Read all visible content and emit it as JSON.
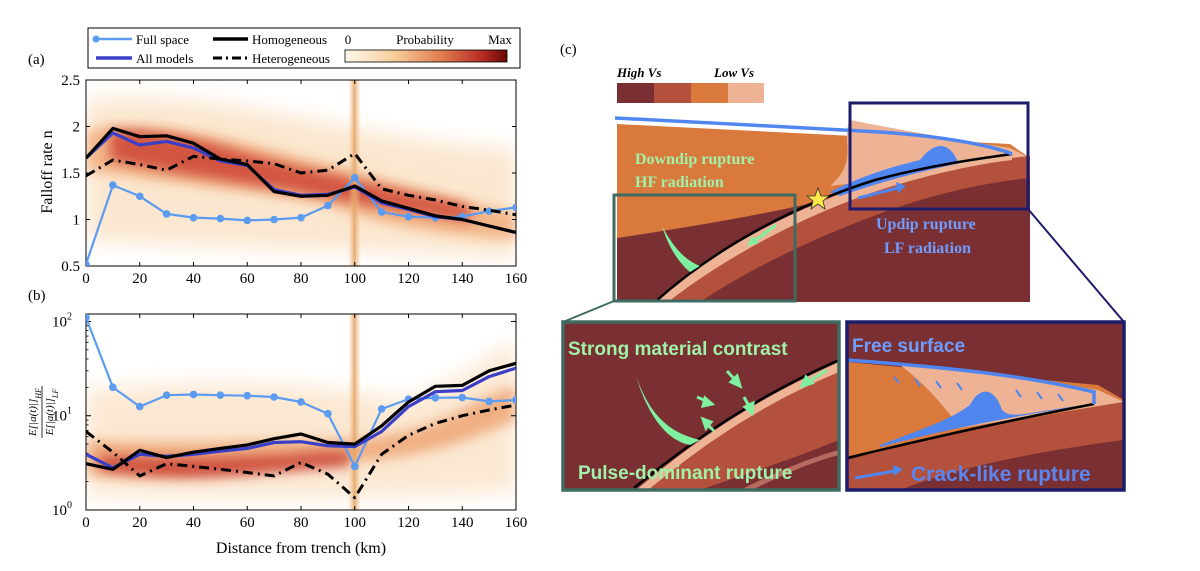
{
  "panel_labels": {
    "a": "(a)",
    "b": "(b)",
    "c": "(c)"
  },
  "legend": {
    "full_space": "Full space",
    "all_models": "All models",
    "homogeneous": "Homogeneous",
    "heterogeneous": "Heterogeneous",
    "colorbar_min": "0",
    "colorbar_title": "Probability",
    "colorbar_max": "Max"
  },
  "colors": {
    "full_space": "#5b9bf0",
    "all_models": "#3a3fc8",
    "homogeneous": "#000000",
    "heterogeneous": "#000000",
    "heat_low": "#fbe9d2",
    "heat_high": "#7d0b0b",
    "mantle": "#7a2f32",
    "crust_mid": "#b3513c",
    "crust_orange": "#d97a3c",
    "crust_light": "#edb394",
    "free_surface": "#4f86f0",
    "green_text": "#9ff2a8",
    "inset_left_border": "#3f6b62",
    "inset_right_border": "#1c1c6b"
  },
  "chart_data": [
    {
      "type": "line",
      "panel": "(a)",
      "ylabel": "Falloff rate n",
      "xlabel": "",
      "xlim": [
        0,
        160
      ],
      "ylim": [
        0.5,
        2.5
      ],
      "xticks": [
        "0",
        "20",
        "40",
        "60",
        "80",
        "100",
        "120",
        "140",
        "160"
      ],
      "yticks": [
        "0.5",
        "1",
        "1.5",
        "2",
        "2.5"
      ],
      "highlight_x": 100,
      "series": [
        {
          "name": "Full space",
          "x": [
            0,
            10,
            20,
            30,
            40,
            50,
            60,
            70,
            80,
            90,
            100,
            110,
            120,
            130,
            140,
            150,
            160
          ],
          "y": [
            0.52,
            1.37,
            1.25,
            1.06,
            1.02,
            1.01,
            0.99,
            1.0,
            1.02,
            1.15,
            1.45,
            1.08,
            1.03,
            1.02,
            1.03,
            1.09,
            1.13
          ]
        },
        {
          "name": "All models",
          "x": [
            0,
            10,
            20,
            30,
            40,
            50,
            60,
            70,
            80,
            90,
            100,
            110,
            120,
            130,
            140,
            150,
            160
          ],
          "y": [
            1.66,
            1.93,
            1.8,
            1.84,
            1.77,
            1.63,
            1.58,
            1.32,
            1.26,
            1.27,
            1.35,
            1.18,
            1.11,
            1.03,
            1.0,
            0.93,
            0.86
          ]
        },
        {
          "name": "Homogeneous",
          "x": [
            0,
            10,
            20,
            30,
            40,
            50,
            60,
            70,
            80,
            90,
            100,
            110,
            120,
            130,
            140,
            150,
            160
          ],
          "y": [
            1.66,
            1.98,
            1.89,
            1.9,
            1.82,
            1.65,
            1.59,
            1.3,
            1.25,
            1.26,
            1.36,
            1.2,
            1.12,
            1.04,
            1.0,
            0.93,
            0.86
          ]
        },
        {
          "name": "Heterogeneous",
          "x": [
            0,
            10,
            20,
            30,
            40,
            50,
            60,
            70,
            80,
            90,
            100,
            110,
            120,
            130,
            140,
            150,
            160
          ],
          "y": [
            1.47,
            1.64,
            1.59,
            1.53,
            1.68,
            1.65,
            1.63,
            1.6,
            1.5,
            1.53,
            1.71,
            1.33,
            1.26,
            1.21,
            1.14,
            1.1,
            1.05
          ]
        }
      ]
    },
    {
      "type": "line",
      "panel": "(b)",
      "ylabel": "E[|a(t)|]_HF / E[|a(t)|]_LF",
      "ylabel_num_main": "E[|a(t)|]",
      "ylabel_num_sub": "HF",
      "ylabel_den_main": "E[|a(t)|]",
      "ylabel_den_sub": "LF",
      "xlabel": "Distance from trench (km)",
      "xlim": [
        0,
        160
      ],
      "ylim": [
        1,
        120
      ],
      "scale": "log",
      "xticks": [
        "0",
        "20",
        "40",
        "60",
        "80",
        "100",
        "120",
        "140",
        "160"
      ],
      "yticks": [
        {
          "base": "10",
          "exp": "0",
          "value": 1
        },
        {
          "base": "10",
          "exp": "1",
          "value": 10
        },
        {
          "base": "10",
          "exp": "2",
          "value": 100
        }
      ],
      "highlight_x": 100,
      "series": [
        {
          "name": "Full space",
          "x": [
            0,
            10,
            20,
            30,
            40,
            50,
            60,
            70,
            80,
            90,
            100,
            110,
            120,
            130,
            140,
            150,
            160
          ],
          "y": [
            110,
            20,
            12.5,
            16.5,
            16.8,
            16.5,
            16.3,
            15.8,
            14,
            10.5,
            2.9,
            11.8,
            15,
            15.5,
            15.6,
            14.2,
            14.7
          ]
        },
        {
          "name": "All models",
          "x": [
            0,
            10,
            20,
            30,
            40,
            50,
            60,
            70,
            80,
            90,
            100,
            110,
            120,
            130,
            140,
            150,
            160
          ],
          "y": [
            3.9,
            2.8,
            3.9,
            3.7,
            3.9,
            4.2,
            4.5,
            5.2,
            5.3,
            4.8,
            4.7,
            6.8,
            12.5,
            18,
            18.5,
            26,
            32
          ]
        },
        {
          "name": "Homogeneous",
          "x": [
            0,
            10,
            20,
            30,
            40,
            50,
            60,
            70,
            80,
            90,
            100,
            110,
            120,
            130,
            140,
            150,
            160
          ],
          "y": [
            3.1,
            2.7,
            4.3,
            3.6,
            4.1,
            4.5,
            4.9,
            5.7,
            6.4,
            5.2,
            5.0,
            7.8,
            14,
            20.5,
            21,
            30,
            36
          ]
        },
        {
          "name": "Heterogeneous",
          "x": [
            0,
            10,
            20,
            30,
            40,
            50,
            60,
            70,
            80,
            90,
            100,
            110,
            120,
            130,
            140,
            150,
            160
          ],
          "y": [
            6.8,
            4.1,
            2.3,
            3.1,
            2.9,
            2.7,
            2.5,
            2.3,
            3.2,
            2.4,
            1.35,
            3.9,
            6.2,
            8.3,
            10,
            11.5,
            13
          ]
        }
      ]
    }
  ],
  "diagram": {
    "vs_legend": {
      "high": "High Vs",
      "low": "Low Vs"
    },
    "downdip": {
      "line1": "Downdip rupture",
      "line2": "HF radiation"
    },
    "updip": {
      "line1": "Updip rupture",
      "line2": "LF radiation"
    },
    "inset_left": {
      "top": "Strong material contrast",
      "bottom": "Pulse-dominant rupture"
    },
    "inset_right": {
      "top": "Free surface",
      "bottom": "Crack-like rupture"
    }
  }
}
